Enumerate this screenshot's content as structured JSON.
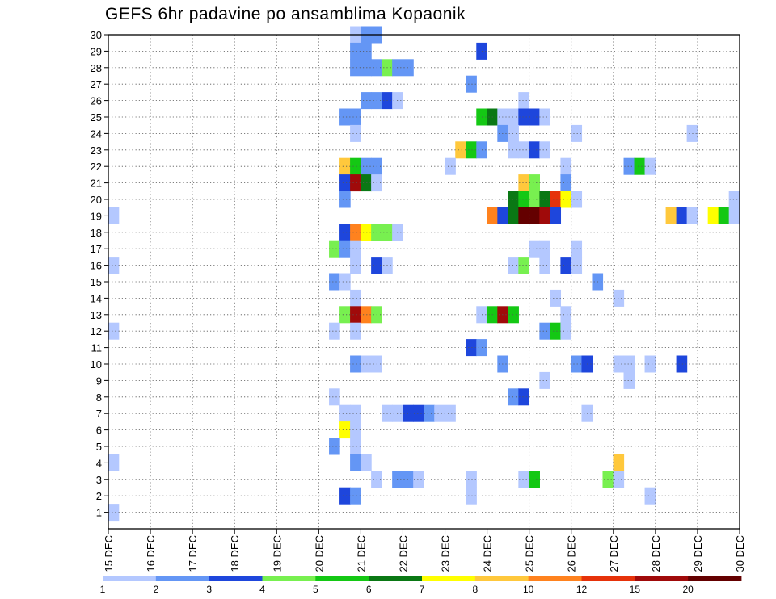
{
  "chart_data": {
    "type": "heatmap",
    "title": "GEFS 6hr padavine po ansamblima Kopaonik",
    "xlabel": "",
    "ylabel": "",
    "x_tick_labels": [
      "15 DEC",
      "16 DEC",
      "17 DEC",
      "18 DEC",
      "19 DEC",
      "20 DEC",
      "21 DEC",
      "22 DEC",
      "23 DEC",
      "24 DEC",
      "25 DEC",
      "26 DEC",
      "27 DEC",
      "28 DEC",
      "29 DEC",
      "30 DEC"
    ],
    "y_tick_labels": [
      "1",
      "2",
      "3",
      "4",
      "5",
      "6",
      "7",
      "8",
      "9",
      "10",
      "11",
      "12",
      "13",
      "14",
      "15",
      "16",
      "17",
      "18",
      "19",
      "20",
      "21",
      "22",
      "23",
      "24",
      "25",
      "26",
      "27",
      "28",
      "29",
      "30"
    ],
    "x_range": [
      "15 DEC",
      "30 DEC"
    ],
    "step_hours": 6,
    "y_range": [
      0,
      30
    ],
    "grid": true,
    "colorbar": {
      "labels": [
        "1",
        "2",
        "3",
        "4",
        "5",
        "6",
        "7",
        "8",
        "10",
        "12",
        "15",
        "20"
      ],
      "colors": [
        "#b4c8ff",
        "#6496f5",
        "#1e46dc",
        "#78f050",
        "#14c814",
        "#0a7814",
        "#ffff00",
        "#ffc83c",
        "#ff821e",
        "#e6320a",
        "#a00a0a",
        "#640000"
      ]
    },
    "classes": [
      "1-2",
      "2-3",
      "3-4",
      "4-5",
      "5-6",
      "6-7",
      "7-8",
      "8-10",
      "10-12",
      "12-15",
      "15-20",
      ">20"
    ],
    "cells": [
      {
        "member": 30,
        "time": "20 DEC 18Z",
        "class": "1-2"
      },
      {
        "member": 30,
        "time": "21 DEC 00Z",
        "class": "2-3"
      },
      {
        "member": 30,
        "time": "21 DEC 06Z",
        "class": "2-3"
      },
      {
        "member": 29,
        "time": "20 DEC 18Z",
        "class": "2-3"
      },
      {
        "member": 29,
        "time": "21 DEC 00Z",
        "class": "2-3"
      },
      {
        "member": 29,
        "time": "23 DEC 18Z",
        "class": "3-4"
      },
      {
        "member": 28,
        "time": "20 DEC 18Z",
        "class": "2-3"
      },
      {
        "member": 28,
        "time": "21 DEC 00Z",
        "class": "2-3"
      },
      {
        "member": 28,
        "time": "21 DEC 06Z",
        "class": "2-3"
      },
      {
        "member": 28,
        "time": "21 DEC 12Z",
        "class": "4-5"
      },
      {
        "member": 28,
        "time": "21 DEC 18Z",
        "class": "2-3"
      },
      {
        "member": 28,
        "time": "22 DEC 00Z",
        "class": "2-3"
      },
      {
        "member": 27,
        "time": "23 DEC 12Z",
        "class": "2-3"
      },
      {
        "member": 26,
        "time": "21 DEC 00Z",
        "class": "2-3"
      },
      {
        "member": 26,
        "time": "21 DEC 06Z",
        "class": "2-3"
      },
      {
        "member": 26,
        "time": "21 DEC 12Z",
        "class": "3-4"
      },
      {
        "member": 26,
        "time": "21 DEC 18Z",
        "class": "1-2"
      },
      {
        "member": 26,
        "time": "24 DEC 18Z",
        "class": "1-2"
      },
      {
        "member": 25,
        "time": "20 DEC 12Z",
        "class": "2-3"
      },
      {
        "member": 25,
        "time": "20 DEC 18Z",
        "class": "2-3"
      },
      {
        "member": 25,
        "time": "23 DEC 18Z",
        "class": "5-6"
      },
      {
        "member": 25,
        "time": "24 DEC 00Z",
        "class": "6-7"
      },
      {
        "member": 25,
        "time": "24 DEC 06Z",
        "class": "1-2"
      },
      {
        "member": 25,
        "time": "24 DEC 12Z",
        "class": "1-2"
      },
      {
        "member": 25,
        "time": "24 DEC 18Z",
        "class": "3-4"
      },
      {
        "member": 25,
        "time": "25 DEC 00Z",
        "class": "3-4"
      },
      {
        "member": 25,
        "time": "25 DEC 06Z",
        "class": "1-2"
      },
      {
        "member": 24,
        "time": "20 DEC 18Z",
        "class": "1-2"
      },
      {
        "member": 24,
        "time": "24 DEC 06Z",
        "class": "2-3"
      },
      {
        "member": 24,
        "time": "24 DEC 12Z",
        "class": "1-2"
      },
      {
        "member": 24,
        "time": "26 DEC 00Z",
        "class": "1-2"
      },
      {
        "member": 24,
        "time": "28 DEC 18Z",
        "class": "1-2"
      },
      {
        "member": 23,
        "time": "23 DEC 06Z",
        "class": "8-10"
      },
      {
        "member": 23,
        "time": "23 DEC 12Z",
        "class": "5-6"
      },
      {
        "member": 23,
        "time": "23 DEC 18Z",
        "class": "2-3"
      },
      {
        "member": 23,
        "time": "24 DEC 12Z",
        "class": "1-2"
      },
      {
        "member": 23,
        "time": "24 DEC 18Z",
        "class": "1-2"
      },
      {
        "member": 23,
        "time": "25 DEC 00Z",
        "class": "3-4"
      },
      {
        "member": 23,
        "time": "25 DEC 06Z",
        "class": "1-2"
      },
      {
        "member": 22,
        "time": "20 DEC 12Z",
        "class": "8-10"
      },
      {
        "member": 22,
        "time": "20 DEC 18Z",
        "class": "5-6"
      },
      {
        "member": 22,
        "time": "21 DEC 00Z",
        "class": "2-3"
      },
      {
        "member": 22,
        "time": "21 DEC 06Z",
        "class": "2-3"
      },
      {
        "member": 22,
        "time": "23 DEC 00Z",
        "class": "1-2"
      },
      {
        "member": 22,
        "time": "25 DEC 18Z",
        "class": "1-2"
      },
      {
        "member": 22,
        "time": "27 DEC 06Z",
        "class": "2-3"
      },
      {
        "member": 22,
        "time": "27 DEC 12Z",
        "class": "5-6"
      },
      {
        "member": 22,
        "time": "27 DEC 18Z",
        "class": "1-2"
      },
      {
        "member": 21,
        "time": "20 DEC 12Z",
        "class": "3-4"
      },
      {
        "member": 21,
        "time": "20 DEC 18Z",
        "class": "15-20"
      },
      {
        "member": 21,
        "time": "21 DEC 00Z",
        "class": "6-7"
      },
      {
        "member": 21,
        "time": "21 DEC 06Z",
        "class": "1-2"
      },
      {
        "member": 21,
        "time": "24 DEC 18Z",
        "class": "8-10"
      },
      {
        "member": 21,
        "time": "25 DEC 00Z",
        "class": "4-5"
      },
      {
        "member": 21,
        "time": "25 DEC 18Z",
        "class": "2-3"
      },
      {
        "member": 20,
        "time": "20 DEC 12Z",
        "class": "2-3"
      },
      {
        "member": 20,
        "time": "24 DEC 12Z",
        "class": "6-7"
      },
      {
        "member": 20,
        "time": "24 DEC 18Z",
        "class": "5-6"
      },
      {
        "member": 20,
        "time": "25 DEC 00Z",
        "class": "4-5"
      },
      {
        "member": 20,
        "time": "25 DEC 06Z",
        "class": "6-7"
      },
      {
        "member": 20,
        "time": "25 DEC 12Z",
        "class": "12-15"
      },
      {
        "member": 20,
        "time": "25 DEC 18Z",
        "class": "7-8"
      },
      {
        "member": 20,
        "time": "26 DEC 00Z",
        "class": "1-2"
      },
      {
        "member": 20,
        "time": "29 DEC 18Z",
        "class": "1-2"
      },
      {
        "member": 19,
        "time": "15 DEC 00Z",
        "class": "1-2"
      },
      {
        "member": 19,
        "time": "24 DEC 00Z",
        "class": "10-12"
      },
      {
        "member": 19,
        "time": "24 DEC 06Z",
        "class": "3-4"
      },
      {
        "member": 19,
        "time": "24 DEC 12Z",
        "class": "6-7"
      },
      {
        "member": 19,
        "time": "24 DEC 18Z",
        "class": ">20"
      },
      {
        "member": 19,
        "time": "25 DEC 00Z",
        "class": ">20"
      },
      {
        "member": 19,
        "time": "25 DEC 06Z",
        "class": "15-20"
      },
      {
        "member": 19,
        "time": "25 DEC 12Z",
        "class": "3-4"
      },
      {
        "member": 19,
        "time": "28 DEC 06Z",
        "class": "8-10"
      },
      {
        "member": 19,
        "time": "28 DEC 12Z",
        "class": "3-4"
      },
      {
        "member": 19,
        "time": "28 DEC 18Z",
        "class": "1-2"
      },
      {
        "member": 19,
        "time": "29 DEC 06Z",
        "class": "7-8"
      },
      {
        "member": 19,
        "time": "29 DEC 12Z",
        "class": "5-6"
      },
      {
        "member": 19,
        "time": "29 DEC 18Z",
        "class": "1-2"
      },
      {
        "member": 18,
        "time": "20 DEC 12Z",
        "class": "3-4"
      },
      {
        "member": 18,
        "time": "20 DEC 18Z",
        "class": "10-12"
      },
      {
        "member": 18,
        "time": "21 DEC 00Z",
        "class": "7-8"
      },
      {
        "member": 18,
        "time": "21 DEC 06Z",
        "class": "4-5"
      },
      {
        "member": 18,
        "time": "21 DEC 12Z",
        "class": "4-5"
      },
      {
        "member": 18,
        "time": "21 DEC 18Z",
        "class": "1-2"
      },
      {
        "member": 17,
        "time": "20 DEC 06Z",
        "class": "4-5"
      },
      {
        "member": 17,
        "time": "20 DEC 12Z",
        "class": "2-3"
      },
      {
        "member": 17,
        "time": "20 DEC 18Z",
        "class": "1-2"
      },
      {
        "member": 17,
        "time": "25 DEC 00Z",
        "class": "1-2"
      },
      {
        "member": 17,
        "time": "25 DEC 06Z",
        "class": "1-2"
      },
      {
        "member": 17,
        "time": "26 DEC 00Z",
        "class": "1-2"
      },
      {
        "member": 16,
        "time": "15 DEC 00Z",
        "class": "1-2"
      },
      {
        "member": 16,
        "time": "20 DEC 18Z",
        "class": "1-2"
      },
      {
        "member": 16,
        "time": "21 DEC 06Z",
        "class": "3-4"
      },
      {
        "member": 16,
        "time": "21 DEC 12Z",
        "class": "1-2"
      },
      {
        "member": 16,
        "time": "24 DEC 12Z",
        "class": "1-2"
      },
      {
        "member": 16,
        "time": "24 DEC 18Z",
        "class": "4-5"
      },
      {
        "member": 16,
        "time": "25 DEC 06Z",
        "class": "1-2"
      },
      {
        "member": 16,
        "time": "25 DEC 18Z",
        "class": "3-4"
      },
      {
        "member": 16,
        "time": "26 DEC 00Z",
        "class": "1-2"
      },
      {
        "member": 15,
        "time": "20 DEC 06Z",
        "class": "2-3"
      },
      {
        "member": 15,
        "time": "20 DEC 12Z",
        "class": "1-2"
      },
      {
        "member": 15,
        "time": "26 DEC 12Z",
        "class": "2-3"
      },
      {
        "member": 14,
        "time": "20 DEC 18Z",
        "class": "1-2"
      },
      {
        "member": 14,
        "time": "25 DEC 12Z",
        "class": "1-2"
      },
      {
        "member": 14,
        "time": "27 DEC 00Z",
        "class": "1-2"
      },
      {
        "member": 13,
        "time": "20 DEC 12Z",
        "class": "4-5"
      },
      {
        "member": 13,
        "time": "20 DEC 18Z",
        "class": "15-20"
      },
      {
        "member": 13,
        "time": "21 DEC 00Z",
        "class": "10-12"
      },
      {
        "member": 13,
        "time": "21 DEC 06Z",
        "class": "4-5"
      },
      {
        "member": 13,
        "time": "23 DEC 18Z",
        "class": "1-2"
      },
      {
        "member": 13,
        "time": "24 DEC 00Z",
        "class": "5-6"
      },
      {
        "member": 13,
        "time": "24 DEC 06Z",
        "class": "15-20"
      },
      {
        "member": 13,
        "time": "24 DEC 12Z",
        "class": "5-6"
      },
      {
        "member": 13,
        "time": "25 DEC 18Z",
        "class": "1-2"
      },
      {
        "member": 12,
        "time": "15 DEC 00Z",
        "class": "1-2"
      },
      {
        "member": 12,
        "time": "20 DEC 06Z",
        "class": "1-2"
      },
      {
        "member": 12,
        "time": "20 DEC 18Z",
        "class": "1-2"
      },
      {
        "member": 12,
        "time": "25 DEC 06Z",
        "class": "2-3"
      },
      {
        "member": 12,
        "time": "25 DEC 12Z",
        "class": "5-6"
      },
      {
        "member": 12,
        "time": "25 DEC 18Z",
        "class": "1-2"
      },
      {
        "member": 11,
        "time": "23 DEC 12Z",
        "class": "3-4"
      },
      {
        "member": 11,
        "time": "23 DEC 18Z",
        "class": "2-3"
      },
      {
        "member": 10,
        "time": "20 DEC 18Z",
        "class": "2-3"
      },
      {
        "member": 10,
        "time": "21 DEC 00Z",
        "class": "1-2"
      },
      {
        "member": 10,
        "time": "21 DEC 06Z",
        "class": "1-2"
      },
      {
        "member": 10,
        "time": "24 DEC 06Z",
        "class": "2-3"
      },
      {
        "member": 10,
        "time": "26 DEC 00Z",
        "class": "2-3"
      },
      {
        "member": 10,
        "time": "26 DEC 06Z",
        "class": "3-4"
      },
      {
        "member": 10,
        "time": "27 DEC 00Z",
        "class": "1-2"
      },
      {
        "member": 10,
        "time": "27 DEC 06Z",
        "class": "1-2"
      },
      {
        "member": 10,
        "time": "27 DEC 18Z",
        "class": "1-2"
      },
      {
        "member": 10,
        "time": "28 DEC 12Z",
        "class": "3-4"
      },
      {
        "member": 9,
        "time": "25 DEC 06Z",
        "class": "1-2"
      },
      {
        "member": 9,
        "time": "27 DEC 06Z",
        "class": "1-2"
      },
      {
        "member": 8,
        "time": "20 DEC 06Z",
        "class": "1-2"
      },
      {
        "member": 8,
        "time": "24 DEC 12Z",
        "class": "2-3"
      },
      {
        "member": 8,
        "time": "24 DEC 18Z",
        "class": "3-4"
      },
      {
        "member": 7,
        "time": "20 DEC 12Z",
        "class": "1-2"
      },
      {
        "member": 7,
        "time": "20 DEC 18Z",
        "class": "1-2"
      },
      {
        "member": 7,
        "time": "21 DEC 12Z",
        "class": "1-2"
      },
      {
        "member": 7,
        "time": "21 DEC 18Z",
        "class": "1-2"
      },
      {
        "member": 7,
        "time": "22 DEC 00Z",
        "class": "3-4"
      },
      {
        "member": 7,
        "time": "22 DEC 06Z",
        "class": "3-4"
      },
      {
        "member": 7,
        "time": "22 DEC 12Z",
        "class": "2-3"
      },
      {
        "member": 7,
        "time": "22 DEC 18Z",
        "class": "1-2"
      },
      {
        "member": 7,
        "time": "23 DEC 00Z",
        "class": "1-2"
      },
      {
        "member": 7,
        "time": "26 DEC 06Z",
        "class": "1-2"
      },
      {
        "member": 6,
        "time": "20 DEC 12Z",
        "class": "7-8"
      },
      {
        "member": 6,
        "time": "20 DEC 18Z",
        "class": "1-2"
      },
      {
        "member": 5,
        "time": "20 DEC 06Z",
        "class": "2-3"
      },
      {
        "member": 5,
        "time": "20 DEC 18Z",
        "class": "1-2"
      },
      {
        "member": 4,
        "time": "15 DEC 00Z",
        "class": "1-2"
      },
      {
        "member": 4,
        "time": "20 DEC 18Z",
        "class": "2-3"
      },
      {
        "member": 4,
        "time": "21 DEC 00Z",
        "class": "1-2"
      },
      {
        "member": 4,
        "time": "27 DEC 00Z",
        "class": "8-10"
      },
      {
        "member": 3,
        "time": "21 DEC 06Z",
        "class": "1-2"
      },
      {
        "member": 3,
        "time": "21 DEC 18Z",
        "class": "2-3"
      },
      {
        "member": 3,
        "time": "22 DEC 00Z",
        "class": "2-3"
      },
      {
        "member": 3,
        "time": "22 DEC 06Z",
        "class": "1-2"
      },
      {
        "member": 3,
        "time": "23 DEC 12Z",
        "class": "1-2"
      },
      {
        "member": 3,
        "time": "24 DEC 18Z",
        "class": "1-2"
      },
      {
        "member": 3,
        "time": "25 DEC 00Z",
        "class": "5-6"
      },
      {
        "member": 3,
        "time": "26 DEC 18Z",
        "class": "4-5"
      },
      {
        "member": 3,
        "time": "27 DEC 00Z",
        "class": "1-2"
      },
      {
        "member": 2,
        "time": "20 DEC 12Z",
        "class": "3-4"
      },
      {
        "member": 2,
        "time": "20 DEC 18Z",
        "class": "2-3"
      },
      {
        "member": 2,
        "time": "23 DEC 12Z",
        "class": "1-2"
      },
      {
        "member": 2,
        "time": "27 DEC 18Z",
        "class": "1-2"
      },
      {
        "member": 1,
        "time": "15 DEC 00Z",
        "class": "1-2"
      }
    ]
  }
}
